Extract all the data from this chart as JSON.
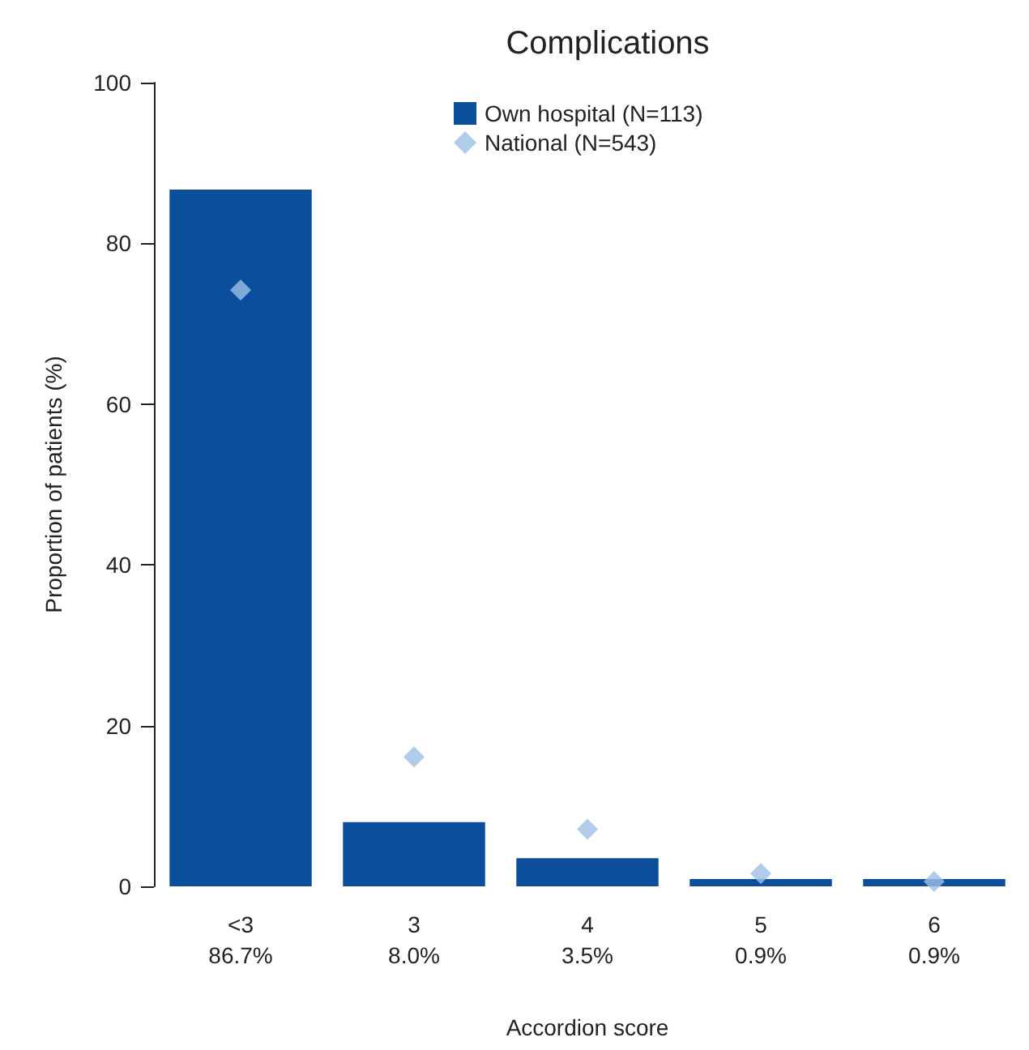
{
  "chart_data": {
    "type": "bar",
    "title": "Complications",
    "xlabel": "Accordion score",
    "ylabel": "Proportion of patients (%)",
    "categories": [
      "<3",
      "3",
      "4",
      "5",
      "6"
    ],
    "series": [
      {
        "name": "Own hospital (N=113)",
        "color": "#0b4f9c",
        "values": [
          86.7,
          8.0,
          3.5,
          0.9,
          0.9
        ],
        "value_labels": [
          "86.7%",
          "8.0%",
          "3.5%",
          "0.9%",
          "0.9%"
        ]
      },
      {
        "name": "National (N=543)",
        "type": "scatter",
        "color": "#9dbfe6",
        "marker": "diamond",
        "values": [
          74.2,
          16.1,
          7.1,
          1.6,
          0.6
        ]
      }
    ],
    "ylim": [
      0,
      100
    ],
    "yticks": [
      0,
      20,
      40,
      60,
      80,
      100
    ],
    "grid": false,
    "legend": "top"
  }
}
